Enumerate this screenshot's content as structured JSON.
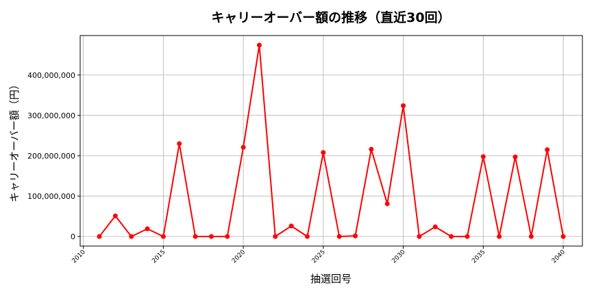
{
  "chart_data": {
    "type": "line",
    "title": "キャリーオーバー額の推移（直近30回）",
    "xlabel": "抽選回号",
    "ylabel": "キャリーオーバー額（円）",
    "xlim": [
      2009.8,
      2041.2
    ],
    "ylim": [
      -23700000,
      497800000
    ],
    "x_ticks": [
      2010,
      2015,
      2020,
      2025,
      2030,
      2035,
      2040
    ],
    "x_tick_labels": [
      "2010",
      "2015",
      "2020",
      "2025",
      "2030",
      "2035",
      "2040"
    ],
    "y_ticks": [
      0,
      100000000,
      200000000,
      300000000,
      400000000
    ],
    "y_tick_labels": [
      "0",
      "100,000,000",
      "200,000,000",
      "300,000,000",
      "400,000,000"
    ],
    "grid": true,
    "series": [
      {
        "color": "#ff0000",
        "marker": "circle",
        "x": [
          2011,
          2012,
          2013,
          2014,
          2015,
          2016,
          2017,
          2018,
          2019,
          2020,
          2021,
          2022,
          2023,
          2024,
          2025,
          2026,
          2027,
          2028,
          2029,
          2030,
          2031,
          2032,
          2033,
          2034,
          2035,
          2036,
          2037,
          2038,
          2039,
          2040
        ],
        "y": [
          0,
          51000000,
          0,
          19000000,
          0,
          230000000,
          0,
          0,
          0,
          221000000,
          474000000,
          0,
          26000000,
          0,
          208000000,
          0,
          1500000,
          216000000,
          81000000,
          324000000,
          0,
          24000000,
          0,
          0,
          198000000,
          0,
          197000000,
          0,
          215000000,
          0
        ]
      }
    ]
  }
}
